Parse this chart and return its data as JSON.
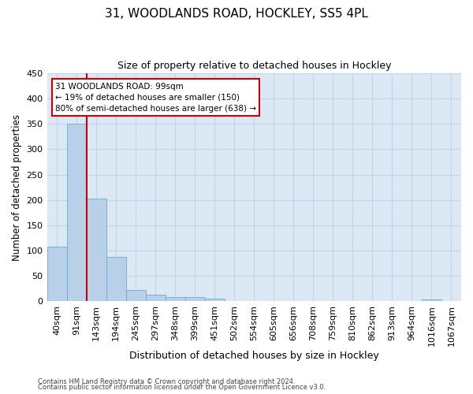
{
  "title1": "31, WOODLANDS ROAD, HOCKLEY, SS5 4PL",
  "title2": "Size of property relative to detached houses in Hockley",
  "xlabel": "Distribution of detached houses by size in Hockley",
  "ylabel": "Number of detached properties",
  "categories": [
    "40sqm",
    "91sqm",
    "143sqm",
    "194sqm",
    "245sqm",
    "297sqm",
    "348sqm",
    "399sqm",
    "451sqm",
    "502sqm",
    "554sqm",
    "605sqm",
    "656sqm",
    "708sqm",
    "759sqm",
    "810sqm",
    "862sqm",
    "913sqm",
    "964sqm",
    "1016sqm",
    "1067sqm"
  ],
  "values": [
    107,
    350,
    202,
    88,
    22,
    13,
    8,
    8,
    5,
    0,
    0,
    0,
    0,
    0,
    0,
    0,
    0,
    0,
    0,
    4,
    0
  ],
  "bar_color": "#b8d0e8",
  "bar_edge_color": "#6aaad4",
  "grid_color": "#c0d4e8",
  "bg_color": "#dce9f5",
  "property_line_x": 1.5,
  "annotation_text": "31 WOODLANDS ROAD: 99sqm\n← 19% of detached houses are smaller (150)\n80% of semi-detached houses are larger (638) →",
  "annotation_box_color": "#ffffff",
  "annotation_box_edge_color": "#cc0000",
  "property_line_color": "#cc0000",
  "ylim": [
    0,
    450
  ],
  "yticks": [
    0,
    50,
    100,
    150,
    200,
    250,
    300,
    350,
    400,
    450
  ],
  "footer1": "Contains HM Land Registry data © Crown copyright and database right 2024.",
  "footer2": "Contains public sector information licensed under the Open Government Licence v3.0."
}
